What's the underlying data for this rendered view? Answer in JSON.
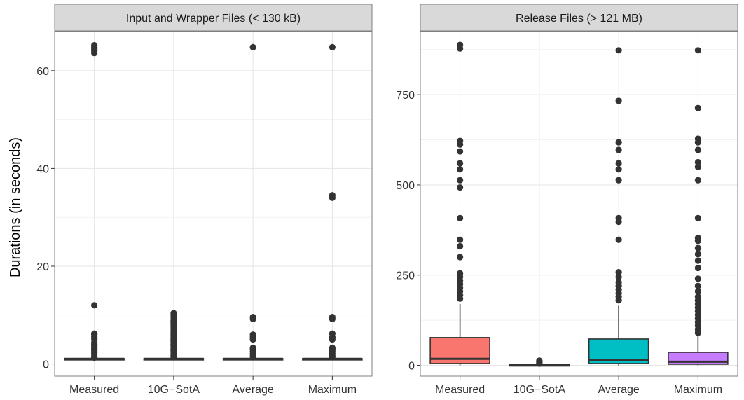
{
  "figure": {
    "ylabel": "Durations (in seconds)"
  },
  "chart_data": [
    {
      "type": "box",
      "title": "Input and Wrapper Files (< 130 kB)",
      "categories": [
        "Measured",
        "10G−SotA",
        "Average",
        "Maximum"
      ],
      "ylim": [
        -2.5,
        68
      ],
      "yticks": [
        0,
        20,
        40,
        60
      ],
      "grid": true,
      "boxes": [
        {
          "category": "Measured",
          "q1": 1.0,
          "median": 1.05,
          "q3": 1.1,
          "whisker_low": 0.9,
          "whisker_high": 1.2,
          "fill": "#333333",
          "outliers": [
            1.3,
            1.6,
            2.0,
            2.3,
            2.6,
            3.0,
            3.3,
            3.7,
            4.0,
            4.4,
            5.0,
            5.5,
            6.0,
            6.2,
            12.0,
            63.6,
            64.0,
            64.4,
            64.8,
            65.2
          ]
        },
        {
          "category": "10G−SotA",
          "q1": 1.0,
          "median": 1.05,
          "q3": 1.1,
          "whisker_low": 0.9,
          "whisker_high": 1.2,
          "fill": "#333333",
          "outliers": [
            1.4,
            1.7,
            2.0,
            2.4,
            2.7,
            3.0,
            3.4,
            3.7,
            4.0,
            4.4,
            4.7,
            5.0,
            5.4,
            5.7,
            6.0,
            6.4,
            6.8,
            7.2,
            7.6,
            8.0,
            8.4,
            8.8,
            9.2,
            9.6,
            10.0,
            10.4
          ]
        },
        {
          "category": "Average",
          "q1": 1.0,
          "median": 1.05,
          "q3": 1.1,
          "whisker_low": 0.9,
          "whisker_high": 1.2,
          "fill": "#333333",
          "outliers": [
            1.5,
            2.0,
            2.5,
            3.0,
            3.3,
            5.0,
            5.5,
            6.0,
            9.2,
            9.6,
            64.8
          ]
        },
        {
          "category": "Maximum",
          "q1": 1.0,
          "median": 1.05,
          "q3": 1.1,
          "whisker_low": 0.9,
          "whisker_high": 1.2,
          "fill": "#333333",
          "outliers": [
            1.5,
            2.0,
            2.5,
            3.0,
            3.3,
            5.0,
            5.5,
            6.2,
            9.2,
            9.6,
            34.0,
            34.5,
            64.8
          ]
        }
      ]
    },
    {
      "type": "box",
      "title": "Release Files (> 121 MB)",
      "categories": [
        "Measured",
        "10G−SotA",
        "Average",
        "Maximum"
      ],
      "ylim": [
        -30,
        925
      ],
      "yticks": [
        0,
        250,
        500,
        750
      ],
      "grid": true,
      "boxes": [
        {
          "category": "Measured",
          "q1": 5,
          "median": 18,
          "q3": 77,
          "whisker_low": 0,
          "whisker_high": 170,
          "fill": "#f8766d",
          "outliers": [
            185,
            195,
            205,
            215,
            225,
            235,
            245,
            255,
            300,
            330,
            348,
            408,
            493,
            513,
            543,
            560,
            593,
            612,
            622,
            878,
            888
          ]
        },
        {
          "category": "10G−SotA",
          "q1": 0.5,
          "median": 1,
          "q3": 2,
          "whisker_low": 0,
          "whisker_high": 4,
          "fill": "#7cae00",
          "outliers": [
            5,
            7,
            9,
            11,
            13
          ]
        },
        {
          "category": "Average",
          "q1": 5,
          "median": 14,
          "q3": 73,
          "whisker_low": 0,
          "whisker_high": 165,
          "fill": "#00bfc4",
          "outliers": [
            180,
            190,
            200,
            210,
            220,
            230,
            245,
            258,
            348,
            398,
            408,
            513,
            543,
            560,
            597,
            618,
            733,
            873
          ]
        },
        {
          "category": "Maximum",
          "q1": 3,
          "median": 10,
          "q3": 36,
          "whisker_low": 0,
          "whisker_high": 82,
          "fill": "#c77cff",
          "outliers": [
            90,
            100,
            110,
            120,
            130,
            140,
            150,
            160,
            170,
            180,
            190,
            205,
            220,
            240,
            270,
            290,
            308,
            325,
            345,
            353,
            408,
            513,
            550,
            563,
            597,
            618,
            628,
            713,
            873
          ]
        }
      ]
    }
  ]
}
